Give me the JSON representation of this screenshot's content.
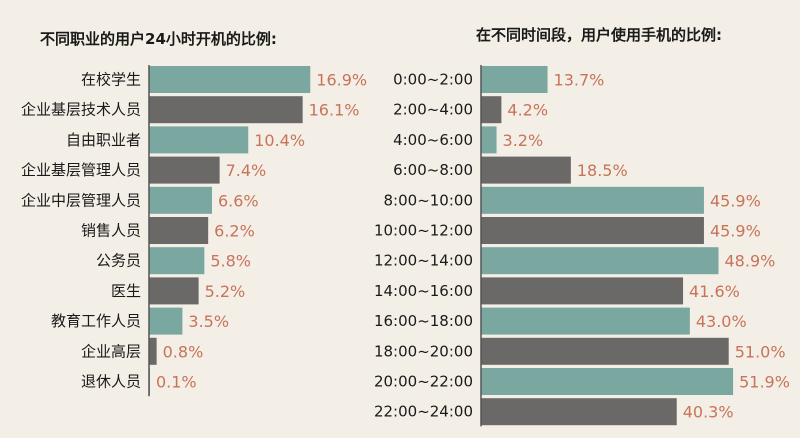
{
  "colors": {
    "teal": "#7aa8a0",
    "gray": "#6b6868",
    "value_text": "#c8735a",
    "background": "#f3efe6"
  },
  "chart_data": [
    {
      "type": "bar",
      "orientation": "horizontal",
      "title": "不同职业的用户24小时开机的比例:",
      "categories": [
        "在校学生",
        "企业基层技术人员",
        "自由职业者",
        "企业基层管理人员",
        "企业中层管理人员",
        "销售人员",
        "公务员",
        "医生",
        "教育工作人员",
        "企业高层",
        "退休人员"
      ],
      "values": [
        16.9,
        16.1,
        10.4,
        7.4,
        6.6,
        6.2,
        5.8,
        5.2,
        3.5,
        0.8,
        0.1
      ],
      "value_labels": [
        "16.9%",
        "16.1%",
        "10.4%",
        "7.4%",
        "6.6%",
        "6.2%",
        "5.8%",
        "5.2%",
        "3.5%",
        "0.8%",
        "0.1%"
      ],
      "unit": "%",
      "xlim": [
        0,
        17.5
      ],
      "bar_colors": "alternating teal/gray",
      "grid": false,
      "legend": "none"
    },
    {
      "type": "bar",
      "orientation": "horizontal",
      "title": "在不同时间段，用户使用手机的比例:",
      "categories": [
        "0:00~2:00",
        "2:00~4:00",
        "4:00~6:00",
        "6:00~8:00",
        "8:00~10:00",
        "10:00~12:00",
        "12:00~14:00",
        "14:00~16:00",
        "16:00~18:00",
        "18:00~20:00",
        "20:00~22:00",
        "22:00~24:00"
      ],
      "values": [
        13.7,
        4.2,
        3.2,
        18.5,
        45.9,
        45.9,
        48.9,
        41.6,
        43.0,
        51.0,
        51.9,
        40.3
      ],
      "value_labels": [
        "13.7%",
        "4.2%",
        "3.2%",
        "18.5%",
        "45.9%",
        "45.9%",
        "48.9%",
        "41.6%",
        "43.0%",
        "51.0%",
        "51.9%",
        "40.3%"
      ],
      "unit": "%",
      "xlim": [
        0,
        52.5
      ],
      "bar_colors": "alternating teal/gray",
      "grid": false,
      "legend": "none"
    }
  ]
}
